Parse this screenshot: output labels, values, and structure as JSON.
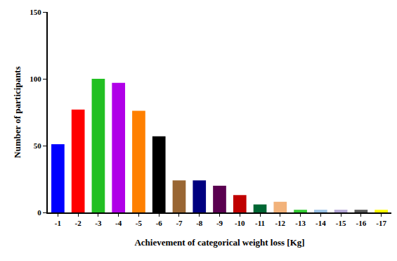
{
  "chart_data": {
    "type": "bar",
    "x_label": "Achievement of categorical weight loss [Kg]",
    "y_label": "Number of participants",
    "categories": [
      "-1",
      "-2",
      "-3",
      "-4",
      "-5",
      "-6",
      "-7",
      "-8",
      "-9",
      "-10",
      "-11",
      "-12",
      "-13",
      "-14",
      "-15",
      "-16",
      "-17"
    ],
    "values": [
      51,
      77,
      100,
      97,
      76,
      57,
      24,
      24,
      20,
      13,
      6,
      8,
      2,
      2,
      2,
      2,
      2
    ],
    "colors": [
      "#0000ff",
      "#ff0000",
      "#22c022",
      "#b000e8",
      "#ff8000",
      "#000000",
      "#996633",
      "#000080",
      "#5a0050",
      "#c00000",
      "#006633",
      "#f2b27a",
      "#33cc33",
      "#9bc2e6",
      "#b4a7d6",
      "#555555",
      "#ffff00"
    ],
    "ylim": [
      0,
      150
    ],
    "yticks": [
      0,
      50,
      100,
      150
    ],
    "grid": false
  }
}
